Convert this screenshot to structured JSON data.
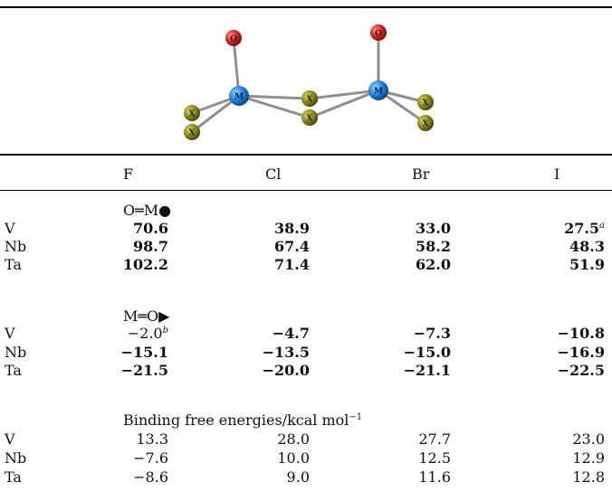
{
  "molecule": {
    "atoms": [
      {
        "label": "O",
        "element": "oxygen",
        "color": "#d8221c"
      },
      {
        "label": "O",
        "element": "oxygen",
        "color": "#d8221c"
      },
      {
        "label": "M",
        "element": "metal",
        "color": "#1a7fe0"
      },
      {
        "label": "M",
        "element": "metal",
        "color": "#1a7fe0"
      },
      {
        "label": "X",
        "element": "halogen",
        "color": "#8a8a1a"
      },
      {
        "label": "X",
        "element": "halogen",
        "color": "#8a8a1a"
      },
      {
        "label": "X",
        "element": "halogen",
        "color": "#8a8a1a"
      },
      {
        "label": "X",
        "element": "halogen",
        "color": "#8a8a1a"
      },
      {
        "label": "X",
        "element": "halogen",
        "color": "#8a8a1a"
      },
      {
        "label": "X",
        "element": "halogen",
        "color": "#8a8a1a"
      }
    ]
  },
  "table": {
    "headers": [
      "F",
      "Cl",
      "Br",
      "I"
    ],
    "sections": [
      {
        "title": "O═M●",
        "rows": [
          {
            "label": "V",
            "values": [
              "70.6",
              "38.9",
              "33.0",
              "27.5"
            ],
            "notes": [
              "",
              "",
              "",
              "a"
            ]
          },
          {
            "label": "Nb",
            "values": [
              "98.7",
              "67.4",
              "58.2",
              "48.3"
            ],
            "notes": [
              "",
              "",
              "",
              ""
            ]
          },
          {
            "label": "Ta",
            "values": [
              "102.2",
              "71.4",
              "62.0",
              "51.9"
            ],
            "notes": [
              "",
              "",
              "",
              ""
            ]
          }
        ]
      },
      {
        "title": "M═O▶",
        "rows": [
          {
            "label": "V",
            "values": [
              "−2.0",
              "−4.7",
              "−7.3",
              "−10.8"
            ],
            "notes": [
              "b",
              "",
              "",
              ""
            ]
          },
          {
            "label": "Nb",
            "values": [
              "−15.1",
              "−13.5",
              "−15.0",
              "−16.9"
            ],
            "notes": [
              "",
              "",
              "",
              ""
            ]
          },
          {
            "label": "Ta",
            "values": [
              "−21.5",
              "−20.0",
              "−21.1",
              "−22.5"
            ],
            "notes": [
              "",
              "",
              "",
              ""
            ]
          }
        ]
      },
      {
        "title": "Binding free energies/kcal mol",
        "title_sup": "−1",
        "rows": [
          {
            "label": "V",
            "values": [
              "13.3",
              "28.0",
              "27.7",
              "23.0"
            ],
            "notes": [
              "",
              "",
              "",
              ""
            ]
          },
          {
            "label": "Nb",
            "values": [
              "−7.6",
              "10.0",
              "12.5",
              "12.9"
            ],
            "notes": [
              "",
              "",
              "",
              ""
            ]
          },
          {
            "label": "Ta",
            "values": [
              "−8.6",
              "9.0",
              "11.6",
              "12.8"
            ],
            "notes": [
              "",
              "",
              "",
              ""
            ]
          }
        ]
      }
    ]
  }
}
